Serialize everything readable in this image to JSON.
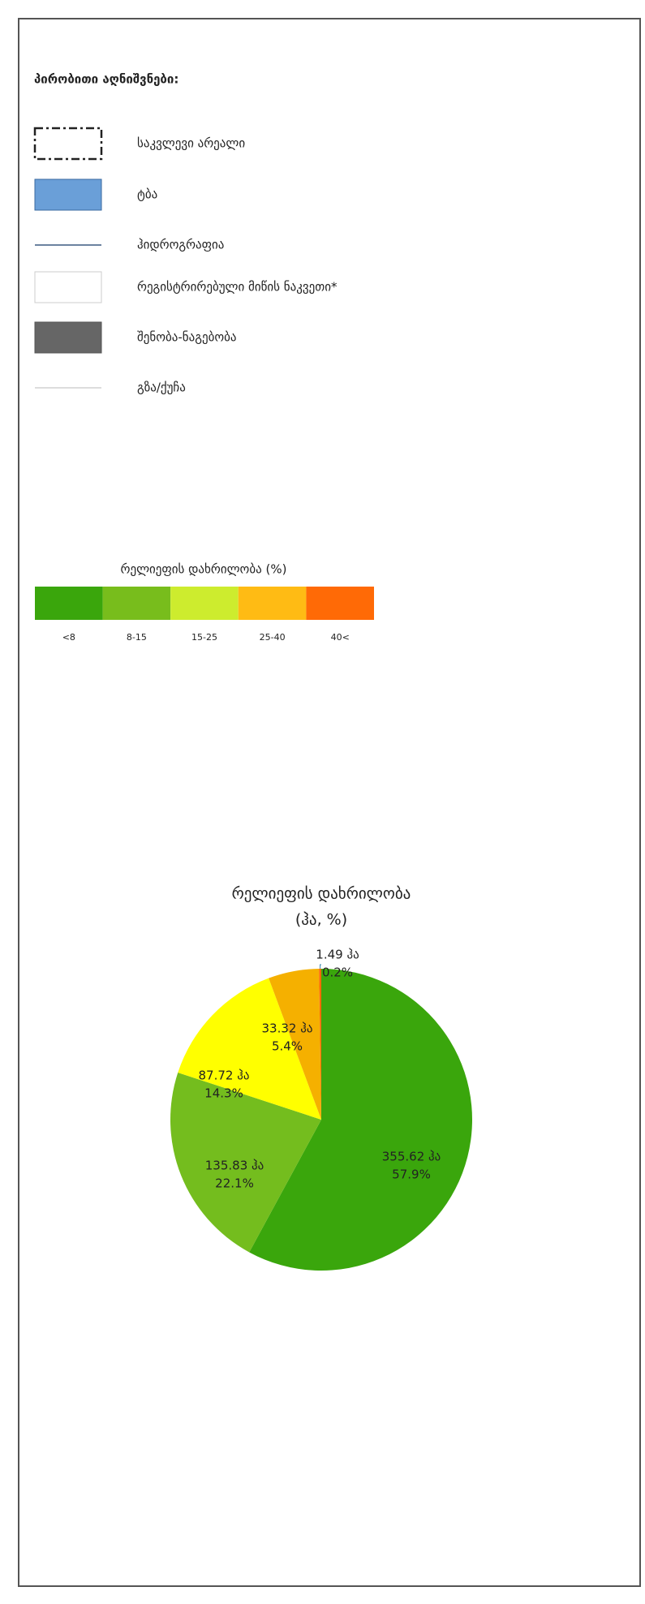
{
  "legend": {
    "title": "პირობითი აღნიშვნები:",
    "items": [
      "საკვლევი არეალი",
      "ტბა",
      "ჰიდროგრაფია",
      "რეგისტრირებული მიწის ნაკვეთი*",
      "შენობა-ნაგებობა",
      "გზა/ქუჩა"
    ]
  },
  "slope_scale": {
    "title": "რელიეფის დახრილობა (%)",
    "classes": [
      "<8",
      "8-15",
      "15-25",
      "25-40",
      "40<"
    ],
    "colors": [
      "#3aa60c",
      "#78bd1c",
      "#cdec2e",
      "#ffbb14",
      "#ff6a06"
    ]
  },
  "chart_data": {
    "type": "pie",
    "title": [
      "რელიეფის დახრილობა",
      "(ჰა, %)"
    ],
    "categories": [
      "<8",
      "8-15",
      "15-25",
      "25-40",
      "40<"
    ],
    "values": [
      355.62,
      135.83,
      87.72,
      33.32,
      1.49
    ],
    "value_labels": [
      "355.62 ჰა",
      "135.83 ჰა",
      "87.72 ჰა",
      "33.32 ჰა",
      "1.49 ჰა"
    ],
    "percents": [
      57.9,
      22.1,
      14.3,
      5.4,
      0.2
    ],
    "percent_labels": [
      "57.9%",
      "22.1%",
      "14.3%",
      "5.4%",
      "0.2%"
    ],
    "colors": [
      "#3aa60c",
      "#74bd1e",
      "#ffff00",
      "#f5b000",
      "#ff6a06"
    ]
  }
}
